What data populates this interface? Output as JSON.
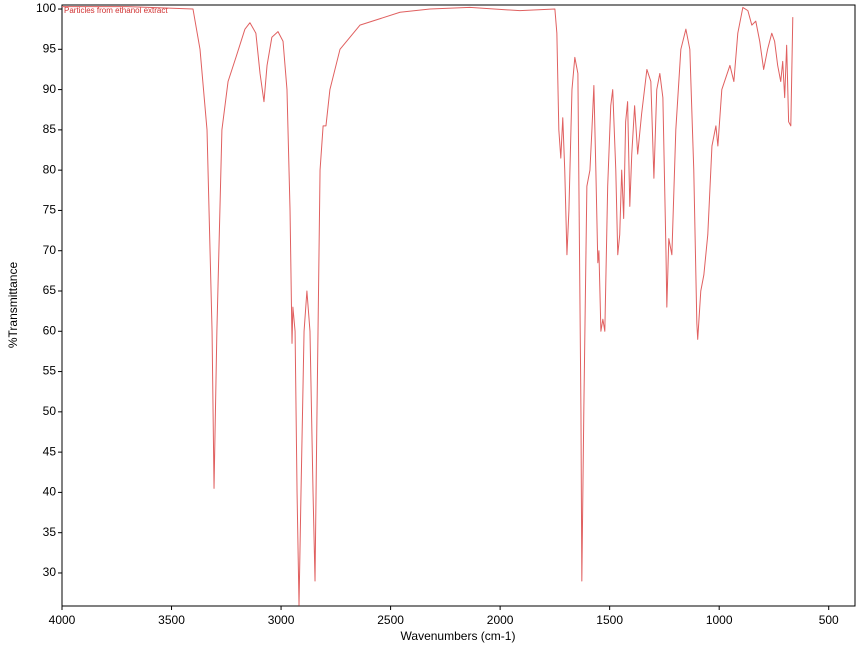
{
  "chart_data": {
    "type": "line",
    "annotation": "Particles from ethanol extract",
    "x_label": "Wavenumbers (cm-1)",
    "y_label": "%Transmittance",
    "xlim": [
      4000,
      380
    ],
    "ylim": [
      25.9,
      100.5
    ],
    "xticks": [
      4000,
      3500,
      3000,
      2500,
      2000,
      1500,
      1000,
      500
    ],
    "yticks": [
      30,
      35,
      40,
      45,
      50,
      55,
      60,
      65,
      70,
      75,
      80,
      85,
      90,
      95,
      100
    ],
    "grid": false,
    "x": [
      4000,
      3700,
      3402,
      3370,
      3338,
      3315,
      3306,
      3293,
      3270,
      3242,
      3206,
      3165,
      3142,
      3115,
      3096,
      3078,
      3064,
      3042,
      3014,
      2991,
      2973,
      2959,
      2950,
      2946,
      2936,
      2927,
      2918,
      2909,
      2895,
      2882,
      2868,
      2854,
      2845,
      2836,
      2822,
      2808,
      2795,
      2777,
      2731,
      2640,
      2457,
      2320,
      2138,
      1910,
      1750,
      1741,
      1732,
      1723,
      1714,
      1705,
      1695,
      1686,
      1672,
      1659,
      1645,
      1631,
      1627,
      1618,
      1604,
      1590,
      1581,
      1572,
      1563,
      1554,
      1549,
      1540,
      1531,
      1522,
      1509,
      1495,
      1486,
      1472,
      1463,
      1454,
      1445,
      1436,
      1427,
      1418,
      1408,
      1399,
      1386,
      1372,
      1354,
      1330,
      1312,
      1298,
      1285,
      1271,
      1257,
      1243,
      1239,
      1230,
      1216,
      1198,
      1175,
      1152,
      1134,
      1116,
      1102,
      1098,
      1084,
      1070,
      1052,
      1033,
      1015,
      1006,
      988,
      951,
      933,
      915,
      892,
      869,
      851,
      833,
      815,
      797,
      779,
      760,
      747,
      733,
      719,
      710,
      701,
      692,
      683,
      673,
      664
    ],
    "series": [
      {
        "name": "Particles from ethanol extract",
        "color": "#e06060",
        "values": [
          100.3,
          100.3,
          100,
          95,
          85,
          60,
          40.5,
          60,
          85,
          91,
          94,
          97.5,
          98.3,
          97,
          92,
          88.5,
          93,
          96.5,
          97.2,
          96,
          90,
          75,
          58.5,
          63,
          60,
          40,
          26,
          40,
          60,
          65,
          60,
          40,
          29,
          50,
          80,
          85.5,
          85.5,
          90,
          95,
          98,
          99.6,
          100,
          100.2,
          99.8,
          100,
          97,
          85,
          81.5,
          86.5,
          80,
          69.5,
          75,
          90,
          94,
          92,
          50,
          29,
          50,
          78,
          80,
          85,
          90.5,
          80,
          68.5,
          70,
          60,
          61.5,
          60,
          78,
          88,
          90,
          80,
          69.5,
          72,
          80,
          74,
          86,
          88.5,
          75.5,
          82,
          88,
          82,
          87,
          92.5,
          91,
          79,
          90,
          92,
          89,
          70,
          63,
          71.5,
          69.5,
          85,
          95,
          97.5,
          95,
          80,
          61,
          59,
          65,
          67,
          72,
          83,
          85.5,
          83,
          90,
          93,
          91,
          97,
          100.2,
          99.8,
          98,
          98.5,
          96,
          92.5,
          95,
          97,
          96,
          93,
          91,
          93.5,
          89,
          95.5,
          86,
          85.5,
          99
        ]
      }
    ]
  }
}
